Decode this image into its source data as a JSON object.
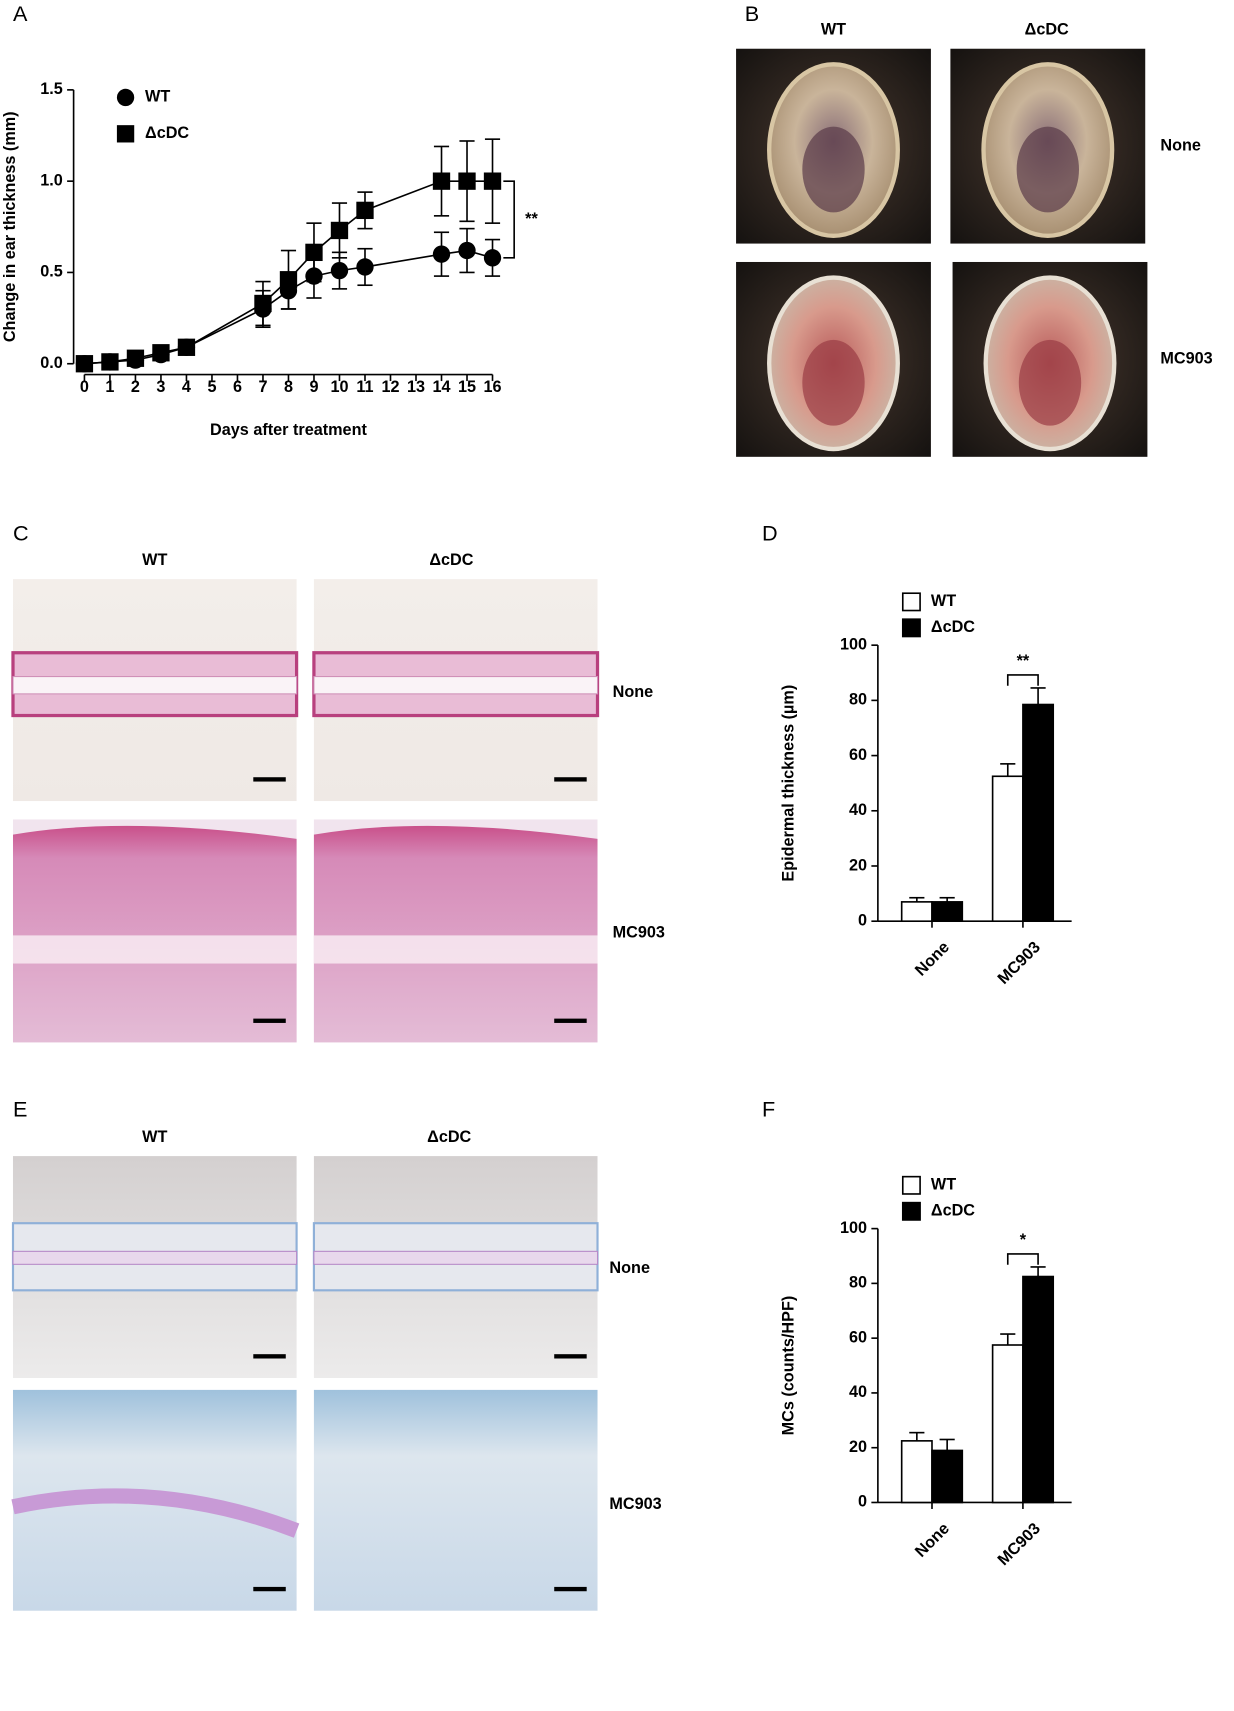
{
  "figure": {
    "panel_labels": [
      "A",
      "B",
      "C",
      "D",
      "E",
      "F"
    ],
    "photo_panels": [
      {
        "columns": [
          "WT",
          "ΔcDC"
        ],
        "rows": [
          "None",
          "MC903"
        ]
      },
      {
        "columns": [
          "WT",
          "ΔcDC"
        ],
        "rows": [
          "None",
          "MC903"
        ]
      },
      {
        "columns": [
          "WT",
          "ΔcDC"
        ],
        "rows": [
          "None",
          "MC903"
        ]
      }
    ]
  },
  "chart_data": [
    {
      "type": "line",
      "x_label": "Days after treatment",
      "y_label": "Change in ear thickness (mm)",
      "x": [
        0,
        1,
        2,
        3,
        4,
        7,
        8,
        9,
        10,
        11,
        14,
        15,
        16
      ],
      "xlim": [
        0,
        16
      ],
      "xticks": [
        0,
        1,
        2,
        3,
        4,
        5,
        6,
        7,
        8,
        9,
        10,
        11,
        12,
        13,
        14,
        15,
        16
      ],
      "ylim": [
        0,
        1.5
      ],
      "yticks": [
        {
          "value": 0,
          "label": "0.0"
        },
        0.5,
        {
          "value": 1,
          "label": "1.0"
        },
        1.5
      ],
      "legend": "upper left",
      "annotation": "**",
      "series": [
        {
          "name": "WT",
          "color": "#000000",
          "marker": "circle",
          "values": [
            0,
            0.01,
            0.02,
            0.05,
            0.09,
            0.3,
            0.4,
            0.48,
            0.51,
            0.53,
            0.6,
            0.62,
            0.58
          ],
          "errors": [
            0.01,
            0.01,
            0.01,
            0.02,
            0.02,
            0.1,
            0.1,
            0.12,
            0.1,
            0.1,
            0.12,
            0.12,
            0.1
          ]
        },
        {
          "name": "ΔcDC",
          "color": "#000000",
          "marker": "square",
          "values": [
            0,
            0.01,
            0.03,
            0.06,
            0.09,
            0.33,
            0.46,
            0.61,
            0.73,
            0.84,
            1.0,
            1.0,
            1.0
          ],
          "errors": [
            0.01,
            0.01,
            0.01,
            0.02,
            0.02,
            0.12,
            0.16,
            0.16,
            0.15,
            0.1,
            0.19,
            0.22,
            0.23
          ]
        }
      ]
    },
    {
      "type": "bar",
      "y_label": "Epidermal thickness (µm)",
      "categories": [
        "None",
        "MC903"
      ],
      "ylim": [
        0,
        100
      ],
      "yticks": [
        0,
        20,
        40,
        60,
        80,
        100
      ],
      "legend": "upper left",
      "annotation": "**",
      "series": [
        {
          "name": "WT",
          "color": "#ffffff",
          "values": [
            7,
            52.5
          ],
          "errors": [
            1.5,
            4.5
          ]
        },
        {
          "name": "ΔcDC",
          "color": "#000000",
          "values": [
            7,
            78.5
          ],
          "errors": [
            1.5,
            6
          ]
        }
      ]
    },
    {
      "type": "bar",
      "y_label": "MCs (counts/HPF)",
      "categories": [
        "None",
        "MC903"
      ],
      "ylim": [
        0,
        100
      ],
      "yticks": [
        0,
        20,
        40,
        60,
        80,
        100
      ],
      "legend": "upper left",
      "annotation": "*",
      "series": [
        {
          "name": "WT",
          "color": "#ffffff",
          "values": [
            22.5,
            57.5
          ],
          "errors": [
            3,
            4
          ]
        },
        {
          "name": "ΔcDC",
          "color": "#000000",
          "values": [
            19,
            82.5
          ],
          "errors": [
            4,
            3.5
          ]
        }
      ]
    }
  ]
}
